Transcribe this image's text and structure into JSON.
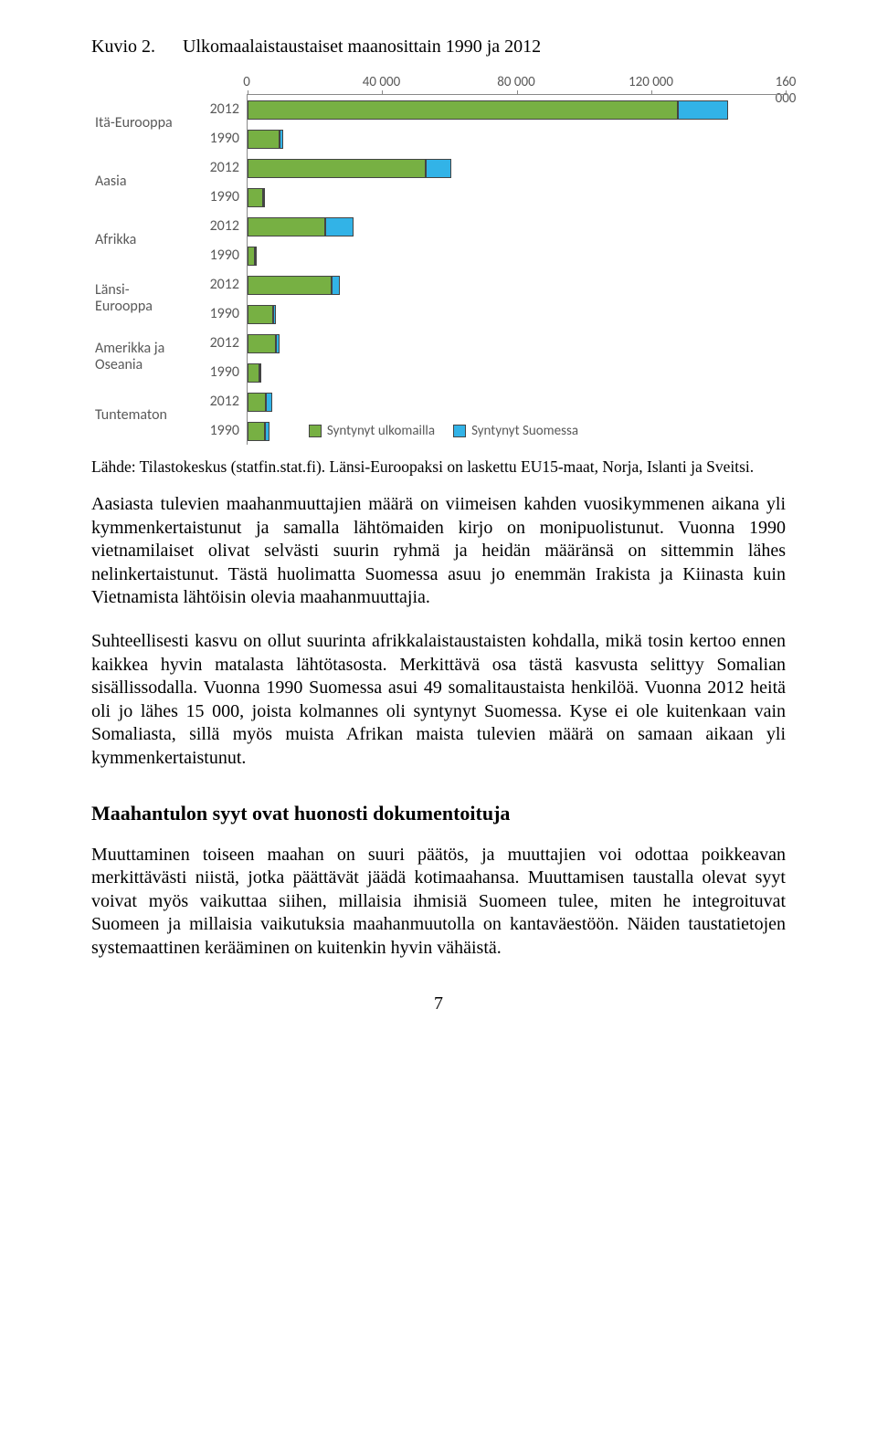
{
  "title": {
    "label": "Kuvio 2.",
    "text": "Ulkomaalaistaustaiset maanosittain 1990 ja 2012"
  },
  "chart": {
    "type": "bar",
    "xlim": [
      0,
      160000
    ],
    "xticks": [
      {
        "v": 0,
        "label": "0"
      },
      {
        "v": 40000,
        "label": "40 000"
      },
      {
        "v": 80000,
        "label": "80 000"
      },
      {
        "v": 120000,
        "label": "120 000"
      },
      {
        "v": 160000,
        "label": "160 000"
      }
    ],
    "categories": [
      {
        "key": "ita",
        "label_lines": [
          "Itä-Eurooppa"
        ]
      },
      {
        "key": "aasia",
        "label_lines": [
          "Aasia"
        ]
      },
      {
        "key": "afrikka",
        "label_lines": [
          "Afrikka"
        ]
      },
      {
        "key": "lansi",
        "label_lines": [
          "Länsi-",
          "Eurooppa"
        ]
      },
      {
        "key": "amerikka",
        "label_lines": [
          "Amerikka ja",
          "Oseania"
        ]
      },
      {
        "key": "tuntematon",
        "label_lines": [
          "Tuntematon"
        ]
      }
    ],
    "years": [
      "2012",
      "1990"
    ],
    "series_colors": {
      "ulkomailla": "#77b043",
      "suomessa": "#32b3e7"
    },
    "bar_border": "#3a3a3a",
    "axis_color": "#888888",
    "text_color": "#595959",
    "legend": {
      "items": [
        {
          "label": "Syntynyt ulkomailla",
          "color": "#77b043"
        },
        {
          "label": "Syntynyt Suomessa",
          "color": "#32b3e7"
        }
      ],
      "row_index": 11
    },
    "rows": [
      {
        "cat": "ita",
        "year": "2012",
        "ulkomailla": 128000,
        "suomessa": 15000
      },
      {
        "cat": "ita",
        "year": "1990",
        "ulkomailla": 9500,
        "suomessa": 1200
      },
      {
        "cat": "aasia",
        "year": "2012",
        "ulkomailla": 53000,
        "suomessa": 7500
      },
      {
        "cat": "aasia",
        "year": "1990",
        "ulkomailla": 4500,
        "suomessa": 500
      },
      {
        "cat": "afrikka",
        "year": "2012",
        "ulkomailla": 23000,
        "suomessa": 8500
      },
      {
        "cat": "afrikka",
        "year": "1990",
        "ulkomailla": 2300,
        "suomessa": 250
      },
      {
        "cat": "lansi",
        "year": "2012",
        "ulkomailla": 25000,
        "suomessa": 2500
      },
      {
        "cat": "lansi",
        "year": "1990",
        "ulkomailla": 7500,
        "suomessa": 800
      },
      {
        "cat": "amerikka",
        "year": "2012",
        "ulkomailla": 8500,
        "suomessa": 1000
      },
      {
        "cat": "amerikka",
        "year": "1990",
        "ulkomailla": 3500,
        "suomessa": 400
      },
      {
        "cat": "tuntematon",
        "year": "2012",
        "ulkomailla": 5500,
        "suomessa": 1800
      },
      {
        "cat": "tuntematon",
        "year": "1990",
        "ulkomailla": 5200,
        "suomessa": 1200
      }
    ]
  },
  "source": "Lähde: Tilastokeskus (statfin.stat.fi). Länsi-Euroopaksi on laskettu EU15-maat, Norja, Islanti ja Sveitsi.",
  "paragraphs": [
    "Aasiasta tulevien maahanmuuttajien määrä on viimeisen kahden vuosikymmenen aikana yli kymmenkertaistunut ja samalla lähtömaiden kirjo on monipuolistunut. Vuonna 1990 vietnamilaiset olivat selvästi suurin ryhmä ja heidän määränsä on sittemmin lähes nelinkertaistunut. Tästä huolimatta Suomessa asuu jo enemmän Irakista ja Kiinasta kuin Vietnamista lähtöisin olevia maahanmuuttajia.",
    "Suhteellisesti kasvu on ollut suurinta afrikkalaistaustaisten kohdalla, mikä tosin kertoo ennen kaikkea hyvin matalasta lähtötasosta. Merkittävä osa tästä kasvusta selittyy Somalian sisällissodalla. Vuonna 1990 Suomessa asui 49 somalitaustaista henkilöä. Vuonna 2012 heitä oli jo lähes 15 000, joista kolmannes oli syntynyt Suomessa. Kyse ei ole kuitenkaan vain Somaliasta, sillä myös muista Afrikan maista tulevien määrä on samaan aikaan yli kymmenkertaistunut."
  ],
  "heading2": "Maahantulon syyt ovat huonosti dokumentoituja",
  "paragraphs2": [
    "Muuttaminen toiseen maahan on suuri päätös, ja muuttajien voi odottaa poikkeavan merkittävästi niistä, jotka päättävät jäädä kotimaahansa. Muuttamisen taustalla olevat syyt voivat myös vaikuttaa siihen, millaisia ihmisiä Suomeen tulee, miten he integroituvat Suomeen ja millaisia vaikutuksia maahanmuutolla on kantaväestöön. Näiden taustatietojen systemaattinen kerääminen on kuitenkin hyvin vähäistä."
  ],
  "pagenum": "7"
}
